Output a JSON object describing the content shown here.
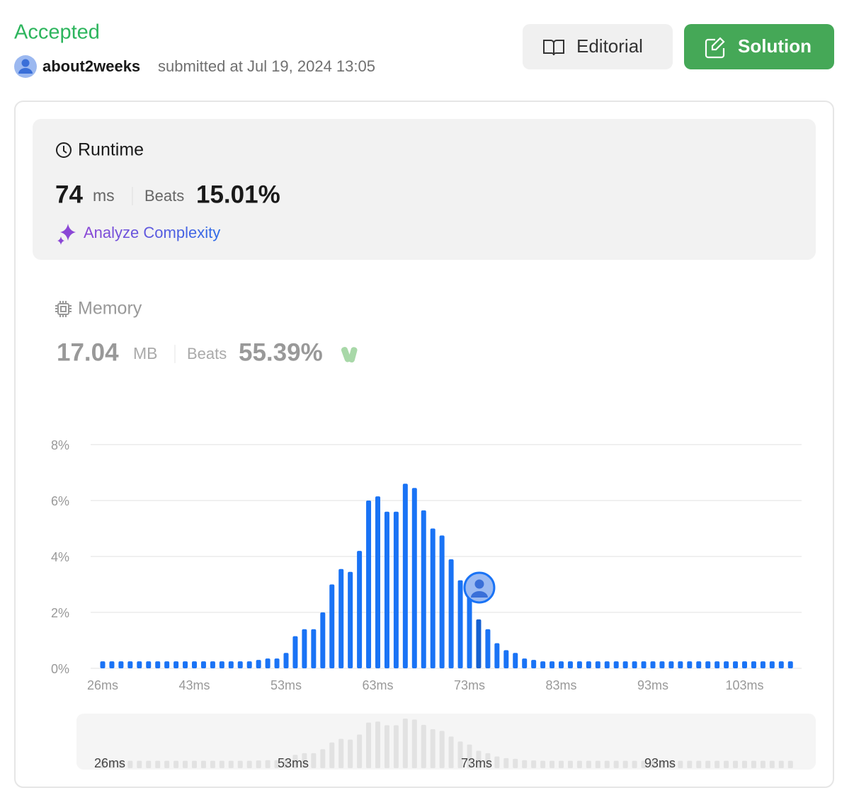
{
  "header": {
    "status": "Accepted",
    "user": "about2weeks",
    "submitted": "submitted at Jul 19, 2024 13:05",
    "buttons": [
      "Editorial",
      "Solution"
    ]
  },
  "runtime": {
    "title": "Runtime",
    "value": "74",
    "unit": "ms",
    "beats_label": "Beats",
    "beats": "15.01%",
    "analyze": "Analyze Complexity"
  },
  "memory": {
    "title": "Memory",
    "value": "17.04",
    "unit": "MB",
    "beats_label": "Beats",
    "beats": "55.39%"
  },
  "chart_data": {
    "type": "bar",
    "color": "#1a73f5",
    "grid": true,
    "categories": [
      "26ms",
      null,
      null,
      null,
      null,
      null,
      null,
      null,
      null,
      null,
      "43ms",
      null,
      null,
      null,
      null,
      null,
      null,
      null,
      null,
      null,
      "53ms",
      null,
      null,
      null,
      null,
      null,
      null,
      null,
      null,
      null,
      "63ms",
      null,
      null,
      null,
      null,
      null,
      null,
      null,
      null,
      null,
      "73ms",
      null,
      null,
      null,
      null,
      null,
      null,
      null,
      null,
      null,
      "83ms",
      null,
      null,
      null,
      null,
      null,
      null,
      null,
      null,
      null,
      "93ms",
      null,
      null,
      null,
      null,
      null,
      null,
      null,
      null,
      null,
      "103ms",
      null,
      null,
      null,
      null,
      null
    ],
    "values": [
      0.25,
      0.25,
      0.25,
      0.25,
      0.25,
      0.25,
      0.25,
      0.25,
      0.25,
      0.25,
      0.25,
      0.25,
      0.25,
      0.25,
      0.25,
      0.25,
      0.25,
      0.3,
      0.35,
      0.35,
      0.55,
      1.15,
      1.4,
      1.4,
      2.0,
      3.0,
      3.55,
      3.45,
      4.2,
      6.0,
      6.15,
      5.6,
      5.6,
      6.6,
      6.45,
      5.65,
      5.0,
      4.75,
      3.9,
      3.15,
      2.7,
      1.75,
      1.4,
      0.9,
      0.65,
      0.55,
      0.35,
      0.3,
      0.25,
      0.25,
      0.25,
      0.25,
      0.25,
      0.25,
      0.25,
      0.25,
      0.25,
      0.25,
      0.25,
      0.25,
      0.25,
      0.25,
      0.25,
      0.25,
      0.25,
      0.25,
      0.25,
      0.25,
      0.25,
      0.25,
      0.25,
      0.25,
      0.25,
      0.25,
      0.25,
      0.25
    ],
    "ylim": [
      0,
      8
    ],
    "yticks": [
      {
        "value": 0,
        "label": "0%"
      },
      {
        "value": 2,
        "label": "2%"
      },
      {
        "value": 4,
        "label": "4%"
      },
      {
        "value": 6,
        "label": "6%"
      },
      {
        "value": 8,
        "label": "8%"
      }
    ]
  }
}
